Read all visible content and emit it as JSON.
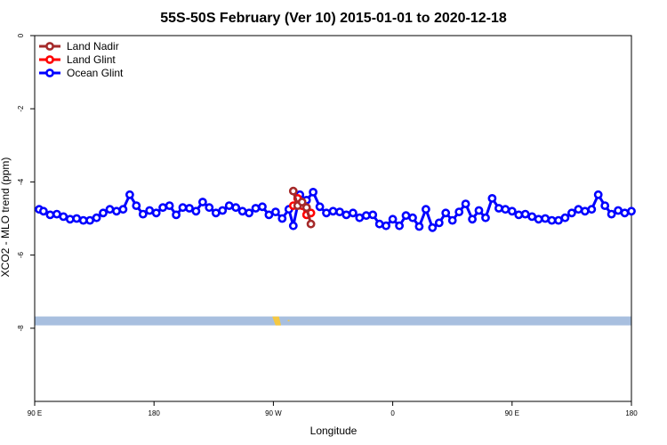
{
  "chart_data": {
    "type": "line",
    "title": "55S-50S February (Ver 10)   2015-01-01 to 2020-12-18",
    "xlabel": "Longitude",
    "ylabel": "XCO2 - MLO trend (ppm)",
    "xlim": [
      -90,
      180
    ],
    "ylim": [
      -10,
      0
    ],
    "x_ticks": [
      {
        "value": -90,
        "label": "90 E"
      },
      {
        "value": -36,
        "label": "180"
      },
      {
        "value": 18,
        "label": "90 W"
      },
      {
        "value": 72,
        "label": "0"
      },
      {
        "value": 126,
        "label": "90 E"
      },
      {
        "value": 180,
        "label": "180"
      }
    ],
    "y_ticks": [
      0,
      -2,
      -4,
      -6,
      -8
    ],
    "legend_position": "top-left",
    "series": [
      {
        "name": "Land Nadir",
        "color": "#a52a2a",
        "x": [
          27,
          29,
          31,
          33,
          35
        ],
        "y": [
          -4.25,
          -4.65,
          -4.55,
          -4.7,
          -5.15
        ]
      },
      {
        "name": "Land Glint",
        "color": "#ff0000",
        "x": [
          27,
          29,
          31,
          33,
          35
        ],
        "y": [
          -4.65,
          -4.45,
          -4.65,
          -4.9,
          -4.85
        ]
      },
      {
        "name": "Ocean Glint",
        "color": "#0000ff",
        "x": [
          -88,
          -86,
          -83,
          -80,
          -77,
          -74,
          -71,
          -68,
          -65,
          -62,
          -59,
          -56,
          -53,
          -50,
          -47,
          -44,
          -41,
          -38,
          -35,
          -32,
          -29,
          -26,
          -23,
          -20,
          -17,
          -14,
          -11,
          -8,
          -5,
          -2,
          1,
          4,
          7,
          10,
          13,
          16,
          19,
          22,
          25,
          27,
          30,
          33,
          36,
          39,
          42,
          45,
          48,
          51,
          54,
          57,
          60,
          63,
          66,
          69,
          72,
          75,
          78,
          81,
          84,
          87,
          90,
          93,
          96,
          99,
          102,
          105,
          108,
          111,
          114,
          117,
          120,
          123,
          126,
          129,
          132,
          135,
          138,
          141,
          144,
          147,
          150,
          153,
          156,
          159,
          162,
          165,
          168,
          171,
          174,
          177,
          180
        ],
        "y": [
          -4.75,
          -4.8,
          -4.9,
          -4.88,
          -4.95,
          -5.02,
          -5.0,
          -5.05,
          -5.05,
          -4.98,
          -4.85,
          -4.75,
          -4.8,
          -4.75,
          -4.35,
          -4.65,
          -4.88,
          -4.78,
          -4.85,
          -4.7,
          -4.65,
          -4.9,
          -4.7,
          -4.72,
          -4.8,
          -4.55,
          -4.7,
          -4.85,
          -4.78,
          -4.65,
          -4.7,
          -4.8,
          -4.85,
          -4.72,
          -4.68,
          -4.9,
          -4.82,
          -5.0,
          -4.75,
          -5.2,
          -4.35,
          -4.5,
          -4.28,
          -4.68,
          -4.85,
          -4.8,
          -4.82,
          -4.9,
          -4.85,
          -4.98,
          -4.92,
          -4.9,
          -5.15,
          -5.2,
          -5.02,
          -5.2,
          -4.92,
          -4.98,
          -5.22,
          -4.75,
          -5.25,
          -5.12,
          -4.85,
          -5.05,
          -4.82,
          -4.6,
          -5.02,
          -4.78,
          -4.98,
          -4.45,
          -4.72,
          -4.75,
          -4.8,
          -4.9,
          -4.88,
          -4.95,
          -5.02,
          -5.0,
          -5.05,
          -5.05,
          -4.98,
          -4.85,
          -4.75,
          -4.8,
          -4.75,
          -4.35,
          -4.65,
          -4.88,
          -4.78,
          -4.85,
          -4.8
        ]
      }
    ],
    "land_strip": {
      "y_center": -7.8,
      "strip_color": "#a8bfdf",
      "land_color": "#f5c842"
    }
  }
}
